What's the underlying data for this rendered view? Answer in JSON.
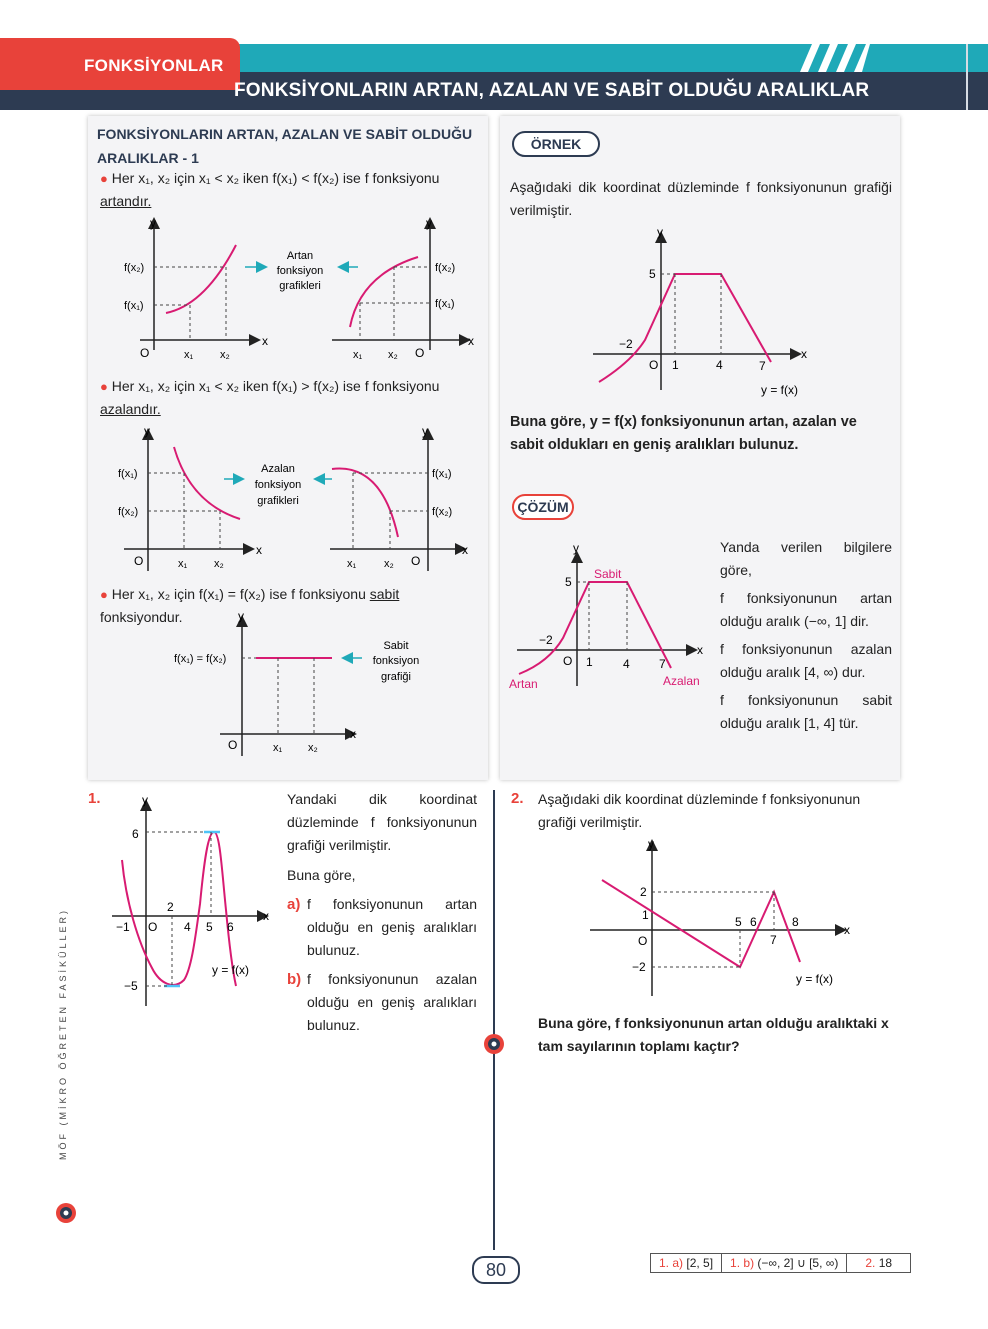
{
  "header": {
    "section": "FONKSİYONLAR",
    "title": "FONKSİYONLARIN ARTAN, AZALAN VE SABİT OLDUĞU ARALIKLAR"
  },
  "theory": {
    "title_line1": "FONKSİYONLARIN ARTAN, AZALAN VE SABİT OLDUĞU",
    "title_line2": "ARALIKLAR - 1",
    "rule1_a": "Her x₁, x₂ için x₁ < x₂ iken f(x₁) < f(x₂) ise f fonksiyonu ",
    "rule1_b": "artandır.",
    "rule2_a": "Her x₁, x₂ için x₁ < x₂ iken f(x₁) > f(x₂) ise f fonksiyonu ",
    "rule2_b": "azalandır.",
    "rule3_a": "Her x₁, x₂ için f(x₁) = f(x₂) ise f fonksiyonu ",
    "rule3_b": "sabit",
    "rule3_c": " fonksiyondur.",
    "label_inc": [
      "Artan",
      "fonksiyon",
      "grafikleri"
    ],
    "label_dec": [
      "Azalan",
      "fonksiyon",
      "grafikleri"
    ],
    "label_const": [
      "Sabit",
      "fonksiyon",
      "grafiği"
    ],
    "axis_y": "y",
    "axis_x": "x",
    "origin": "O",
    "x1": "x₁",
    "x2": "x₂",
    "fx1": "f(x₁)",
    "fx2": "f(x₂)",
    "feq": "f(x₁) = f(x₂)"
  },
  "example": {
    "badge": "ÖRNEK",
    "text": "Aşağıdaki dik koordinat düzleminde f fonksiyonunun grafiği verilmiştir.",
    "question": "Buna göre, y = f(x) fonksiyonunun artan, azalan ve sabit oldukları en geniş aralıkları bulunuz.",
    "graph": {
      "y5": "5",
      "xm2": "−2",
      "x1": "1",
      "x4": "4",
      "x7": "7",
      "fname": "y = f(x)"
    }
  },
  "solution": {
    "badge": "ÇÖZÜM",
    "intro": "Yanda verilen bilgilere göre,",
    "inc": "f fonksiyonunun artan olduğu aralık (−∞, 1] dir.",
    "dec": "f fonksiyonunun azalan olduğu aralık [4, ∞) dur.",
    "const": "f fonksiyonunun sabit olduğu aralık [1, 4] tür.",
    "graph": {
      "sabit": "Sabit",
      "artan": "Artan",
      "azalan": "Azalan"
    }
  },
  "q1": {
    "num": "1.",
    "text": "Yandaki dik koordinat düzleminde f fonksiyonunun grafiği verilmiştir.",
    "lead": "Buna göre,",
    "a_label": "a)",
    "a_text": "f fonksiyonunun artan olduğu en geniş aralıkları bulunuz.",
    "b_label": "b)",
    "b_text": "f fonksiyonunun azalan olduğu en geniş aralıkları bulunuz.",
    "graph": {
      "y6": "6",
      "ym5": "−5",
      "xm1": "−1",
      "x2": "2",
      "x4": "4",
      "x5": "5",
      "x6": "6",
      "fname": "y = f(x)"
    }
  },
  "q2": {
    "num": "2.",
    "text": "Aşağıdaki dik koordinat düzleminde f fonksiyonunun grafiği verilmiştir.",
    "question": "Buna göre, f fonksiyonunun artan olduğu aralıktaki x tam sayılarının toplamı kaçtır?",
    "graph": {
      "y2": "2",
      "y1": "1",
      "ym2": "−2",
      "x5": "5",
      "x6": "6",
      "x7": "7",
      "x8": "8",
      "fname": "y = f(x)"
    }
  },
  "footer": {
    "page": "80",
    "side_text": "MÖF (MİKRO ÖĞRETEN FASİKÜLLER)",
    "answers": [
      {
        "label": "1. a)",
        "value": "[2, 5]"
      },
      {
        "label": "1. b)",
        "value": "(−∞, 2] ∪ [5, ∞)"
      },
      {
        "label": "2.",
        "value": "18"
      }
    ]
  },
  "colors": {
    "accent_red": "#e8423a",
    "teal": "#1fa9b8",
    "navy": "#2d3b52",
    "curve": "#d81b72",
    "highlight": "#4fc3f7"
  }
}
